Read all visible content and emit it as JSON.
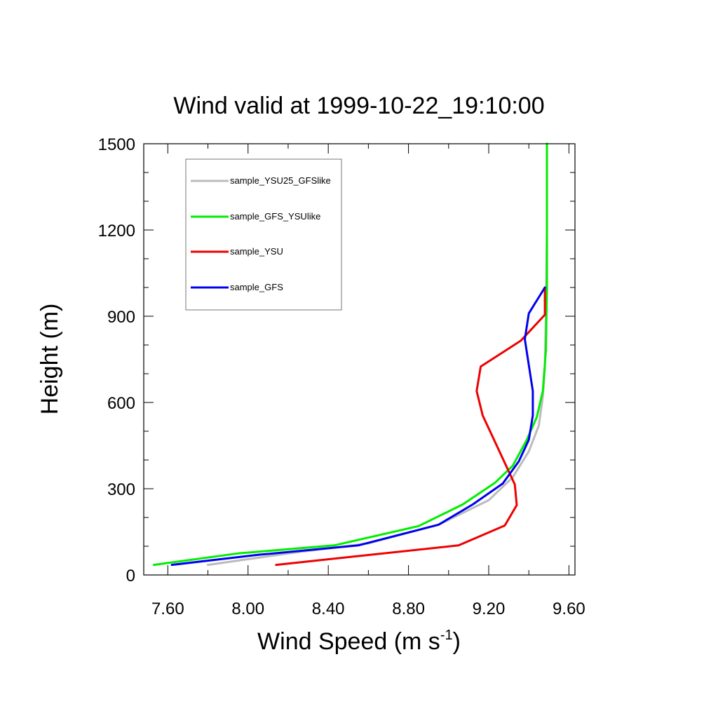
{
  "chart_data": {
    "type": "line",
    "title": "Wind valid at 1999-10-22_19:10:00",
    "xlabel": "Wind Speed (m s",
    "xlabel_sup": "-1",
    "xlabel_end": ")",
    "ylabel": "Height (m)",
    "xlim": [
      7.48,
      9.63
    ],
    "ylim": [
      0,
      1500
    ],
    "xticks": [
      7.6,
      8.0,
      8.4,
      8.8,
      9.2,
      9.6
    ],
    "xtick_labels": [
      "7.60",
      "8.00",
      "8.40",
      "8.80",
      "9.20",
      "9.60"
    ],
    "yticks": [
      0,
      300,
      600,
      900,
      1200,
      1500
    ],
    "ytick_labels": [
      "0",
      "300",
      "600",
      "900",
      "1200",
      "1500"
    ],
    "legend_position": "top-left",
    "series": [
      {
        "name": "sample_YSU25_GFSlike",
        "color": "#bbbbbb",
        "points": [
          [
            7.8,
            35
          ],
          [
            8.2,
            75
          ],
          [
            8.6,
            110
          ],
          [
            8.95,
            175
          ],
          [
            9.2,
            260
          ],
          [
            9.32,
            340
          ],
          [
            9.4,
            430
          ],
          [
            9.45,
            520
          ],
          [
            9.47,
            620
          ],
          [
            9.48,
            720
          ],
          [
            9.485,
            900
          ],
          [
            9.49,
            1200
          ],
          [
            9.49,
            1500
          ]
        ]
      },
      {
        "name": "sample_GFS_YSUlike",
        "color": "#00ee00",
        "points": [
          [
            7.53,
            35
          ],
          [
            7.95,
            75
          ],
          [
            8.43,
            103
          ],
          [
            8.85,
            170
          ],
          [
            9.07,
            245
          ],
          [
            9.23,
            320
          ],
          [
            9.32,
            380
          ],
          [
            9.39,
            470
          ],
          [
            9.44,
            550
          ],
          [
            9.47,
            640
          ],
          [
            9.485,
            780
          ],
          [
            9.49,
            1000
          ],
          [
            9.49,
            1500
          ]
        ]
      },
      {
        "name": "sample_YSU",
        "color": "#ee0000",
        "points": [
          [
            8.14,
            35
          ],
          [
            9.05,
            103
          ],
          [
            9.28,
            172
          ],
          [
            9.34,
            243
          ],
          [
            9.33,
            315
          ],
          [
            9.28,
            390
          ],
          [
            9.17,
            555
          ],
          [
            9.14,
            640
          ],
          [
            9.16,
            725
          ],
          [
            9.36,
            815
          ],
          [
            9.48,
            905
          ],
          [
            9.48,
            1000
          ]
        ]
      },
      {
        "name": "sample_GFS",
        "color": "#0000ee",
        "points": [
          [
            7.62,
            35
          ],
          [
            8.05,
            70
          ],
          [
            8.55,
            103
          ],
          [
            8.95,
            175
          ],
          [
            9.12,
            245
          ],
          [
            9.27,
            318
          ],
          [
            9.35,
            395
          ],
          [
            9.4,
            470
          ],
          [
            9.42,
            555
          ],
          [
            9.42,
            640
          ],
          [
            9.4,
            730
          ],
          [
            9.38,
            820
          ],
          [
            9.4,
            910
          ],
          [
            9.48,
            1000
          ]
        ]
      }
    ]
  }
}
